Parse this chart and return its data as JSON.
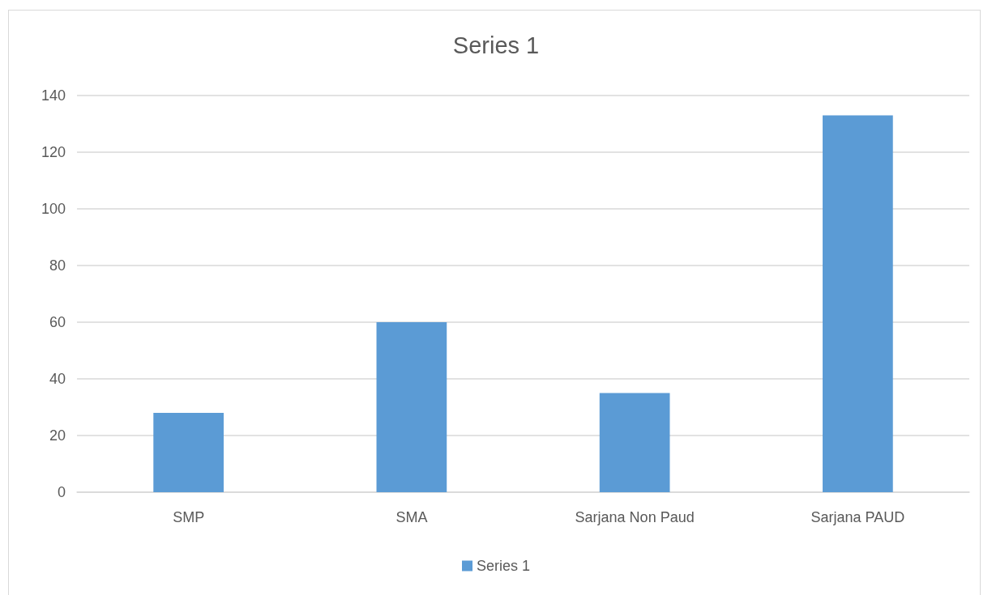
{
  "chart_data": {
    "type": "bar",
    "title": "Series 1",
    "categories": [
      "SMP",
      "SMA",
      "Sarjana Non Paud",
      "Sarjana PAUD"
    ],
    "series": [
      {
        "name": "Series 1",
        "color": "#5b9bd5",
        "values": [
          28,
          60,
          35,
          133
        ]
      }
    ],
    "ylim": [
      0,
      140
    ],
    "yticks": [
      0,
      20,
      40,
      60,
      80,
      100,
      120,
      140
    ],
    "grid": "y",
    "legend": "bottom"
  }
}
